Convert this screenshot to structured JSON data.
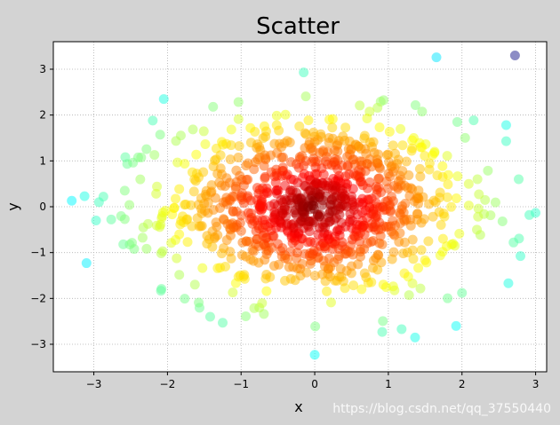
{
  "chart_data": {
    "type": "scatter",
    "title": "Scatter",
    "xlabel": "x",
    "ylabel": "y",
    "xlim": [
      -3.55,
      3.15
    ],
    "ylim": [
      -3.6,
      3.6
    ],
    "xticks": [
      -3,
      -2,
      -1,
      0,
      1,
      2,
      3
    ],
    "yticks": [
      -3,
      -2,
      -1,
      0,
      1,
      2,
      3
    ],
    "grid": true,
    "grid_style": "dotted",
    "marker_alpha": 0.5,
    "colormap": "jet",
    "color_encoding": "arctan2(y, x)",
    "point_count": 1024,
    "distribution": "normal(0, 1)",
    "highlighted_points": [
      {
        "x": 2.72,
        "y": 3.3
      },
      {
        "x": -0.15,
        "y": 2.93
      },
      {
        "x": -2.05,
        "y": 2.35
      },
      {
        "x": -1.38,
        "y": 2.18
      },
      {
        "x": -2.2,
        "y": 1.88
      },
      {
        "x": 2.6,
        "y": 1.78
      },
      {
        "x": 2.6,
        "y": 1.43
      },
      {
        "x": 2.77,
        "y": 0.6
      },
      {
        "x": -3.3,
        "y": 0.13
      },
      {
        "x": -2.87,
        "y": 0.22
      },
      {
        "x": -2.93,
        "y": 0.1
      },
      {
        "x": -2.58,
        "y": 0.35
      },
      {
        "x": -2.58,
        "y": -0.27
      },
      {
        "x": -2.97,
        "y": -0.3
      },
      {
        "x": -2.6,
        "y": -0.82
      },
      {
        "x": -3.1,
        "y": -1.23
      },
      {
        "x": 2.55,
        "y": -0.32
      },
      {
        "x": 2.7,
        "y": -0.78
      },
      {
        "x": 2.63,
        "y": -1.67
      },
      {
        "x": 2.0,
        "y": -1.88
      },
      {
        "x": 1.92,
        "y": -2.6
      },
      {
        "x": 1.18,
        "y": -2.67
      },
      {
        "x": 0.0,
        "y": -3.23
      },
      {
        "x": -1.25,
        "y": -2.53
      },
      {
        "x": -1.42,
        "y": -2.4
      }
    ]
  },
  "watermark": "https://blog.csdn.net/qq_37550440",
  "colors": {
    "figure_bg": "#d3d3d3",
    "axes_bg": "#ffffff",
    "grid": "#b0b0b0"
  }
}
